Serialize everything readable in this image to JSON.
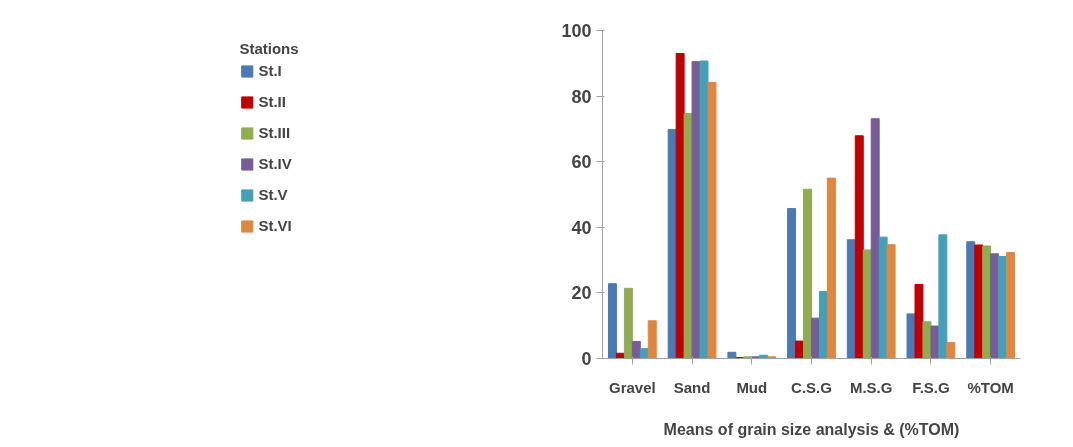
{
  "chart_data": {
    "type": "bar",
    "xlabel": "Means of grain size analysis & (%TOM)",
    "legend_title": "Stations",
    "categories": [
      "Gravel",
      "Sand",
      "Mud",
      "C.S.G",
      "M.S.G",
      "F.S.G",
      "%TOM"
    ],
    "series": [
      {
        "name": "St.I",
        "color": "#4a7ab5",
        "values": [
          22.8,
          69.8,
          1.9,
          45.7,
          36.2,
          13.6,
          35.6
        ]
      },
      {
        "name": "St.II",
        "color": "#c00000",
        "values": [
          1.6,
          93,
          0.3,
          5.3,
          67.9,
          22.6,
          34.6
        ]
      },
      {
        "name": "St.III",
        "color": "#8fac50",
        "values": [
          21.4,
          74.7,
          0.5,
          51.6,
          33.1,
          11.2,
          34.3
        ]
      },
      {
        "name": "St.IV",
        "color": "#785c96",
        "values": [
          5.2,
          90.5,
          0.5,
          12.3,
          73.1,
          9.9,
          31.9
        ]
      },
      {
        "name": "St.V",
        "color": "#44a0b9",
        "values": [
          3,
          90.7,
          1,
          20.4,
          37,
          37.7,
          31.1
        ]
      },
      {
        "name": "St.VI",
        "color": "#e0873f",
        "values": [
          11.5,
          84.2,
          0.5,
          55,
          34.7,
          4.9,
          32.3
        ]
      }
    ],
    "ylim": [
      0,
      100
    ],
    "yticks": [
      0,
      20,
      40,
      60,
      80,
      100
    ],
    "grid": false,
    "legend": "left"
  }
}
